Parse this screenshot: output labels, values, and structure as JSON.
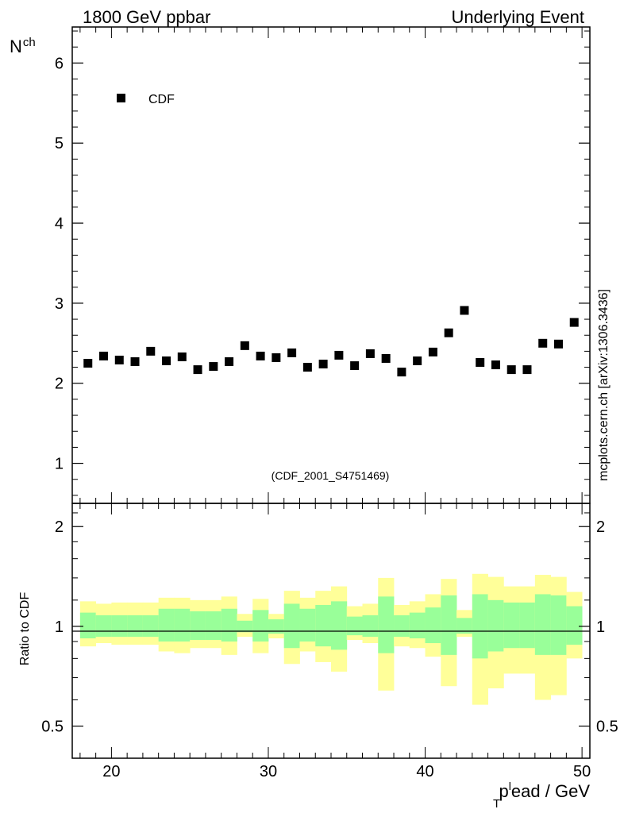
{
  "header": {
    "left_title": "1800 GeV ppbar",
    "right_title": "Underlying Event"
  },
  "watermark": "mcplots.cern.ch [arXiv:1306.3436]",
  "analysis_label": "(CDF_2001_S4751469)",
  "colors": {
    "marker": "#000000",
    "band_outer": "#ffff99",
    "band_inner": "#99ff99",
    "axis": "#000000",
    "analysis_label": "#999999",
    "watermark": "#666666"
  },
  "chart_data": [
    {
      "type": "scatter",
      "panel": "main",
      "ylabel": "N",
      "ylabel_sub": "ch",
      "xlim": [
        17.5,
        50.5
      ],
      "ylim": [
        0.5,
        6.45
      ],
      "y_ticks": [
        1,
        2,
        3,
        4,
        5,
        6
      ],
      "legend": {
        "placement": "top-left",
        "entries": [
          "CDF"
        ]
      },
      "series": [
        {
          "name": "CDF",
          "x": [
            18.5,
            19.5,
            20.5,
            21.5,
            22.5,
            23.5,
            24.5,
            25.5,
            26.5,
            27.5,
            28.5,
            29.5,
            30.5,
            31.5,
            32.5,
            33.5,
            34.5,
            35.5,
            36.5,
            37.5,
            38.5,
            39.5,
            40.5,
            41.5,
            42.5,
            43.5,
            44.5,
            45.5,
            46.5,
            47.5,
            48.5,
            49.5
          ],
          "y": [
            2.25,
            2.34,
            2.29,
            2.27,
            2.4,
            2.28,
            2.33,
            2.17,
            2.21,
            2.27,
            2.47,
            2.34,
            2.32,
            2.38,
            2.2,
            2.24,
            2.35,
            2.22,
            2.37,
            2.31,
            2.14,
            2.28,
            2.39,
            2.63,
            2.91,
            2.26,
            2.23,
            2.17,
            2.17,
            2.5,
            2.49,
            2.76
          ]
        }
      ]
    },
    {
      "type": "area",
      "panel": "ratio",
      "ylabel": "Ratio to CDF",
      "xlabel": "p",
      "xlabel_sub": "T",
      "xlabel_sup": "l",
      "xlabel_rest": "ead / GeV",
      "xlim": [
        17.5,
        50.5
      ],
      "ylim": [
        0.4,
        2.35
      ],
      "log_scale_y": true,
      "y_ticks": [
        0.5,
        1,
        2
      ],
      "x_ticks": [
        20,
        30,
        40,
        50
      ],
      "reference_line": 1,
      "bins": [
        18,
        19,
        20,
        21,
        22,
        23,
        24,
        25,
        26,
        27,
        28,
        29,
        30,
        31,
        32,
        33,
        34,
        35,
        36,
        37,
        38,
        39,
        40,
        41,
        42,
        43,
        44,
        45,
        46,
        47,
        48,
        49,
        50
      ],
      "outer_band": {
        "upper": [
          1.19,
          1.17,
          1.18,
          1.18,
          1.18,
          1.22,
          1.22,
          1.2,
          1.2,
          1.23,
          1.09,
          1.21,
          1.09,
          1.28,
          1.22,
          1.28,
          1.32,
          1.15,
          1.17,
          1.4,
          1.16,
          1.19,
          1.25,
          1.39,
          1.12,
          1.44,
          1.41,
          1.32,
          1.32,
          1.43,
          1.41,
          1.27
        ],
        "lower": [
          0.87,
          0.89,
          0.88,
          0.88,
          0.88,
          0.84,
          0.83,
          0.86,
          0.86,
          0.82,
          0.93,
          0.83,
          0.92,
          0.77,
          0.84,
          0.78,
          0.73,
          0.91,
          0.89,
          0.64,
          0.87,
          0.86,
          0.81,
          0.66,
          0.93,
          0.58,
          0.65,
          0.72,
          0.72,
          0.6,
          0.62,
          0.8
        ]
      },
      "inner_band": {
        "upper": [
          1.1,
          1.08,
          1.08,
          1.08,
          1.08,
          1.13,
          1.13,
          1.11,
          1.11,
          1.13,
          1.04,
          1.12,
          1.05,
          1.17,
          1.13,
          1.16,
          1.19,
          1.07,
          1.08,
          1.23,
          1.08,
          1.1,
          1.14,
          1.24,
          1.06,
          1.25,
          1.2,
          1.18,
          1.18,
          1.25,
          1.24,
          1.15
        ],
        "lower": [
          0.92,
          0.93,
          0.93,
          0.93,
          0.93,
          0.9,
          0.9,
          0.91,
          0.91,
          0.9,
          0.96,
          0.9,
          0.95,
          0.86,
          0.9,
          0.87,
          0.85,
          0.94,
          0.93,
          0.83,
          0.93,
          0.92,
          0.89,
          0.82,
          0.95,
          0.8,
          0.84,
          0.86,
          0.86,
          0.82,
          0.82,
          0.88
        ]
      }
    }
  ]
}
